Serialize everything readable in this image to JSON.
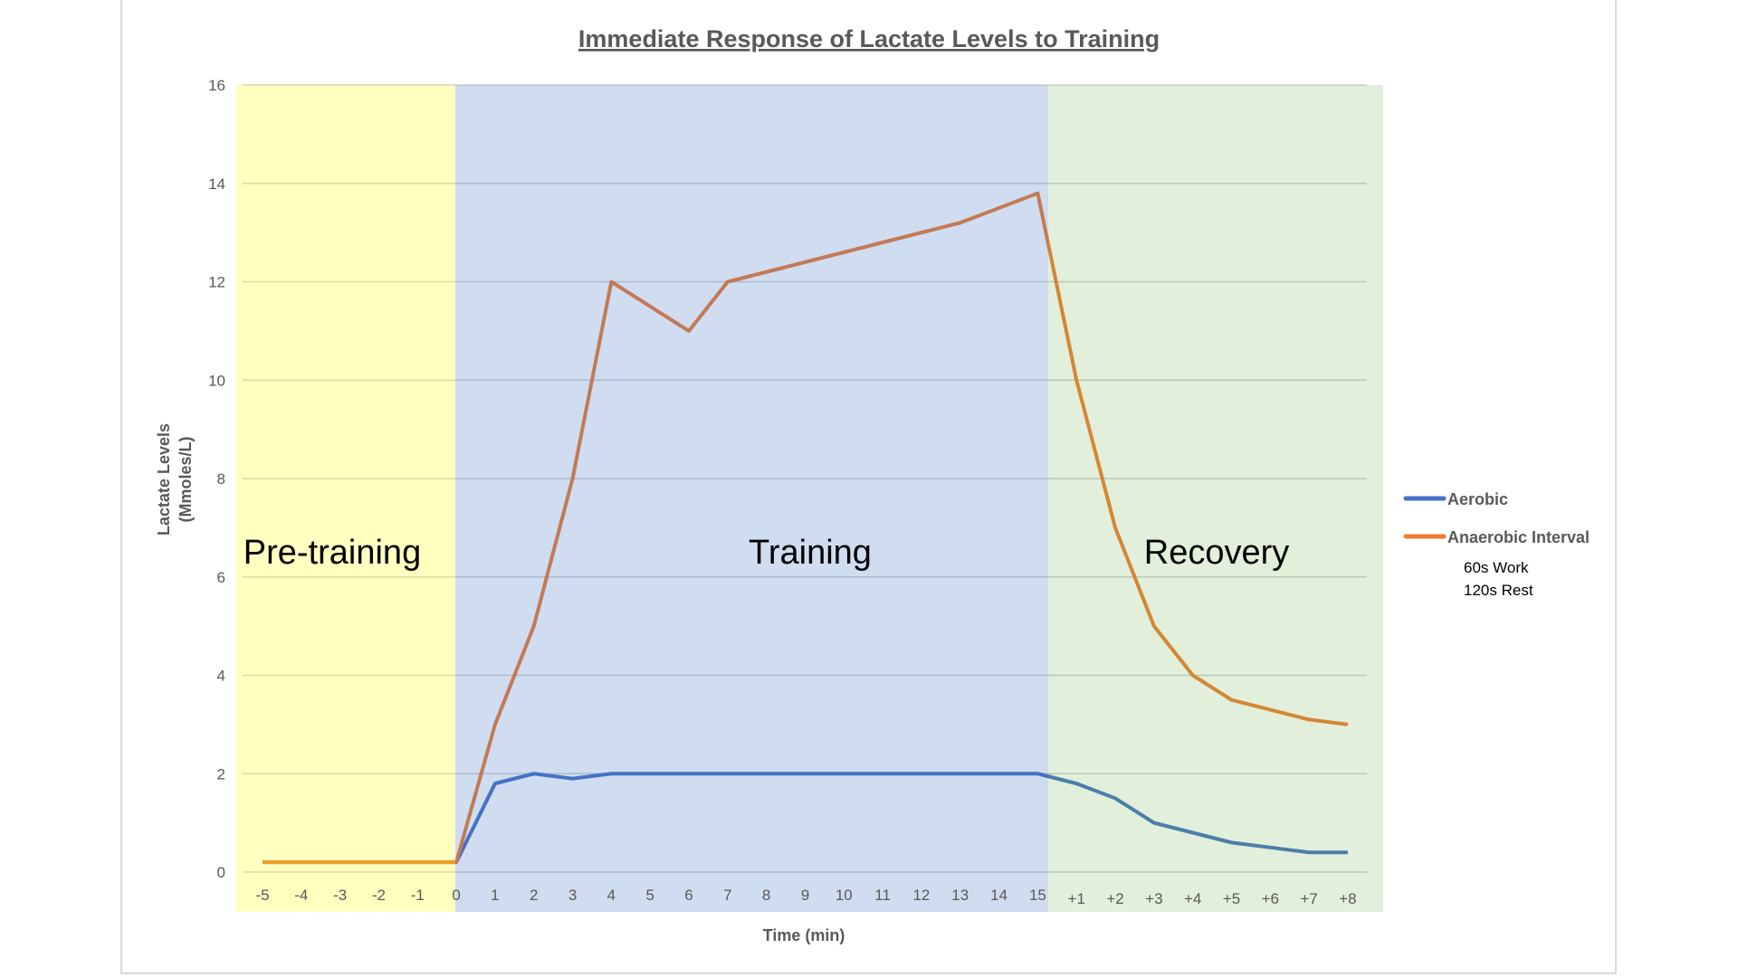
{
  "chart_data": {
    "type": "line",
    "title": "Immediate Response of Lactate Levels to Training",
    "xlabel": "Time (min)",
    "ylabel": [
      "Lactate Levels",
      "(Mmoles/L)"
    ],
    "ylim": [
      0,
      16
    ],
    "yticks": [
      0,
      2,
      4,
      6,
      8,
      10,
      12,
      14,
      16
    ],
    "grid": true,
    "legend_position": "right",
    "categories": [
      "-5",
      "-4",
      "-3",
      "-2",
      "-1",
      "0",
      "1",
      "2",
      "3",
      "4",
      "5",
      "6",
      "7",
      "8",
      "9",
      "10",
      "11",
      "12",
      "13",
      "14",
      "15",
      "+1",
      "+2",
      "+3",
      "+4",
      "+5",
      "+6",
      "+7",
      "+8"
    ],
    "series": [
      {
        "name": "Aerobic",
        "color": "#4472c4",
        "values": [
          0.2,
          0.2,
          0.2,
          0.2,
          0.2,
          0.2,
          1.8,
          2.0,
          1.9,
          2.0,
          2.0,
          2.0,
          2.0,
          2.0,
          2.0,
          2.0,
          2.0,
          2.0,
          2.0,
          2.0,
          2.0,
          1.8,
          1.5,
          1.0,
          0.8,
          0.6,
          0.5,
          0.4,
          0.4
        ]
      },
      {
        "name": "Anaerobic Interval",
        "color": "#ed7d31",
        "values": [
          0.2,
          0.2,
          0.2,
          0.2,
          0.2,
          0.2,
          3,
          5,
          8,
          12,
          11.5,
          11,
          12,
          12.2,
          12.4,
          12.6,
          12.8,
          13.0,
          13.2,
          13.5,
          13.8,
          10,
          7,
          5,
          4,
          3.5,
          3.3,
          3.1,
          3.0
        ]
      }
    ],
    "legend_note": [
      "60s Work",
      "120s Rest"
    ],
    "regions": [
      {
        "label": "Pre-training",
        "from": "-5",
        "to": "0",
        "color": "#ffff00"
      },
      {
        "label": "Training",
        "from": "0",
        "to": "15",
        "color": "#4472c4"
      },
      {
        "label": "Recovery",
        "from": "15",
        "to": "+8",
        "color": "#70ad47"
      }
    ]
  }
}
